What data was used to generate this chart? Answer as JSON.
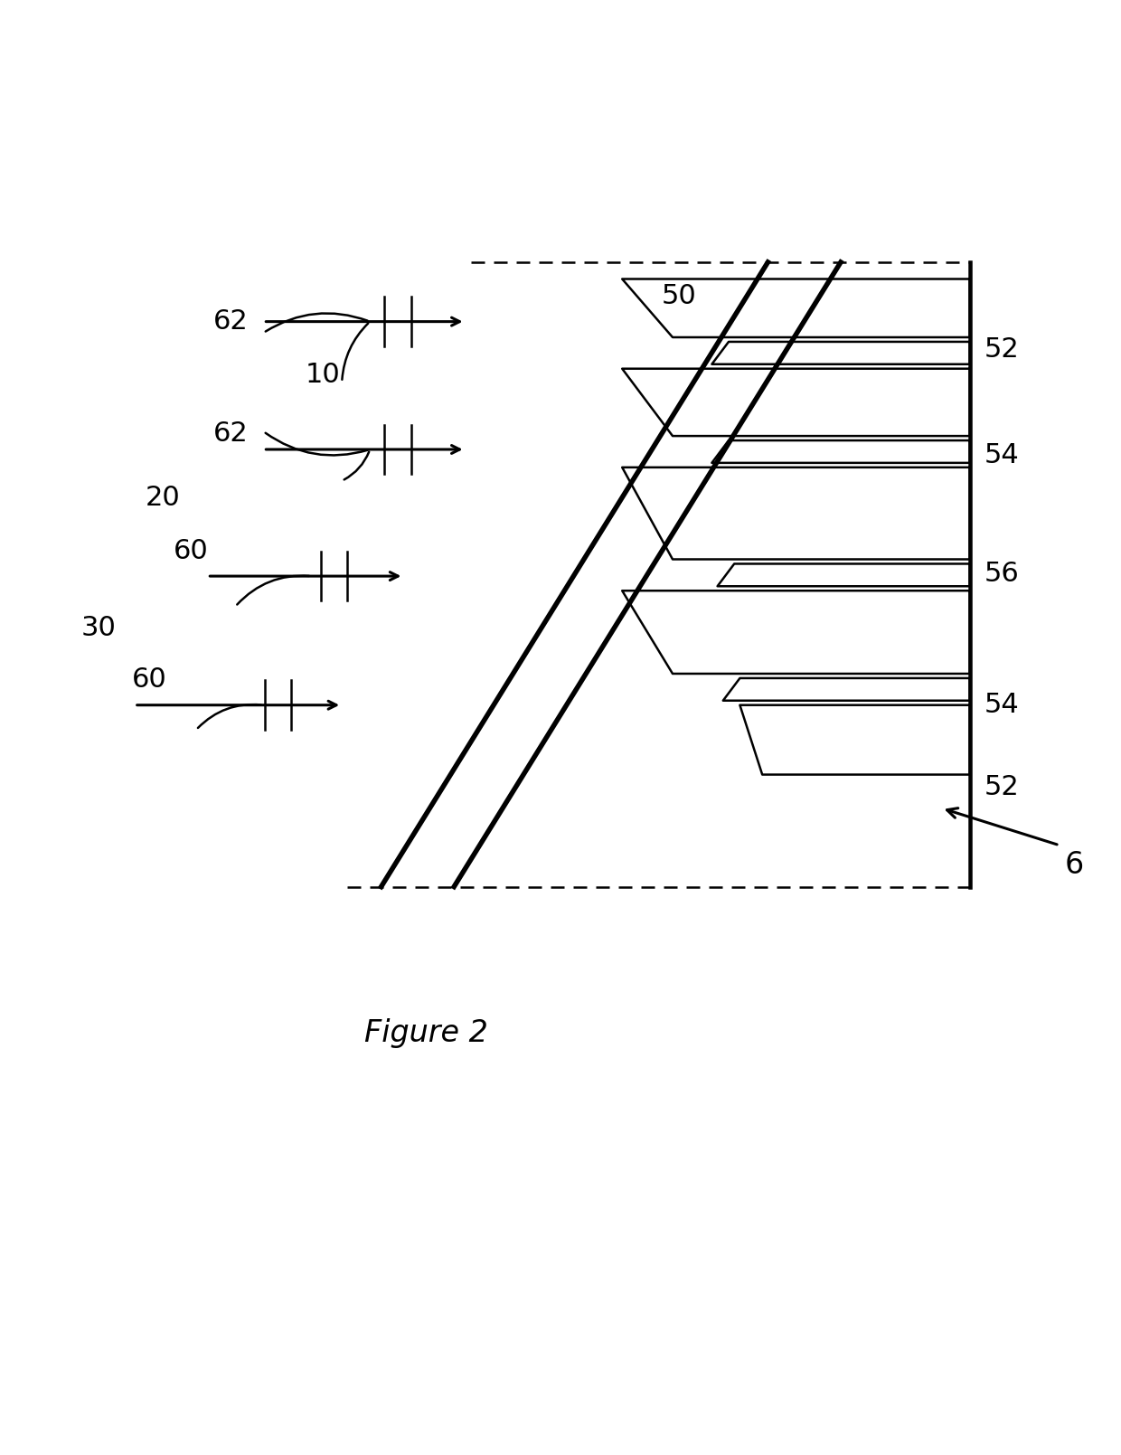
{
  "figure_label": "Figure 2",
  "background_color": "#ffffff",
  "line_color": "#000000",
  "figsize": [
    12.4,
    16.09
  ],
  "dpi": 100,
  "fontsize_labels": 22,
  "fontsize_fig": 24,
  "fontsize_6": 24
}
